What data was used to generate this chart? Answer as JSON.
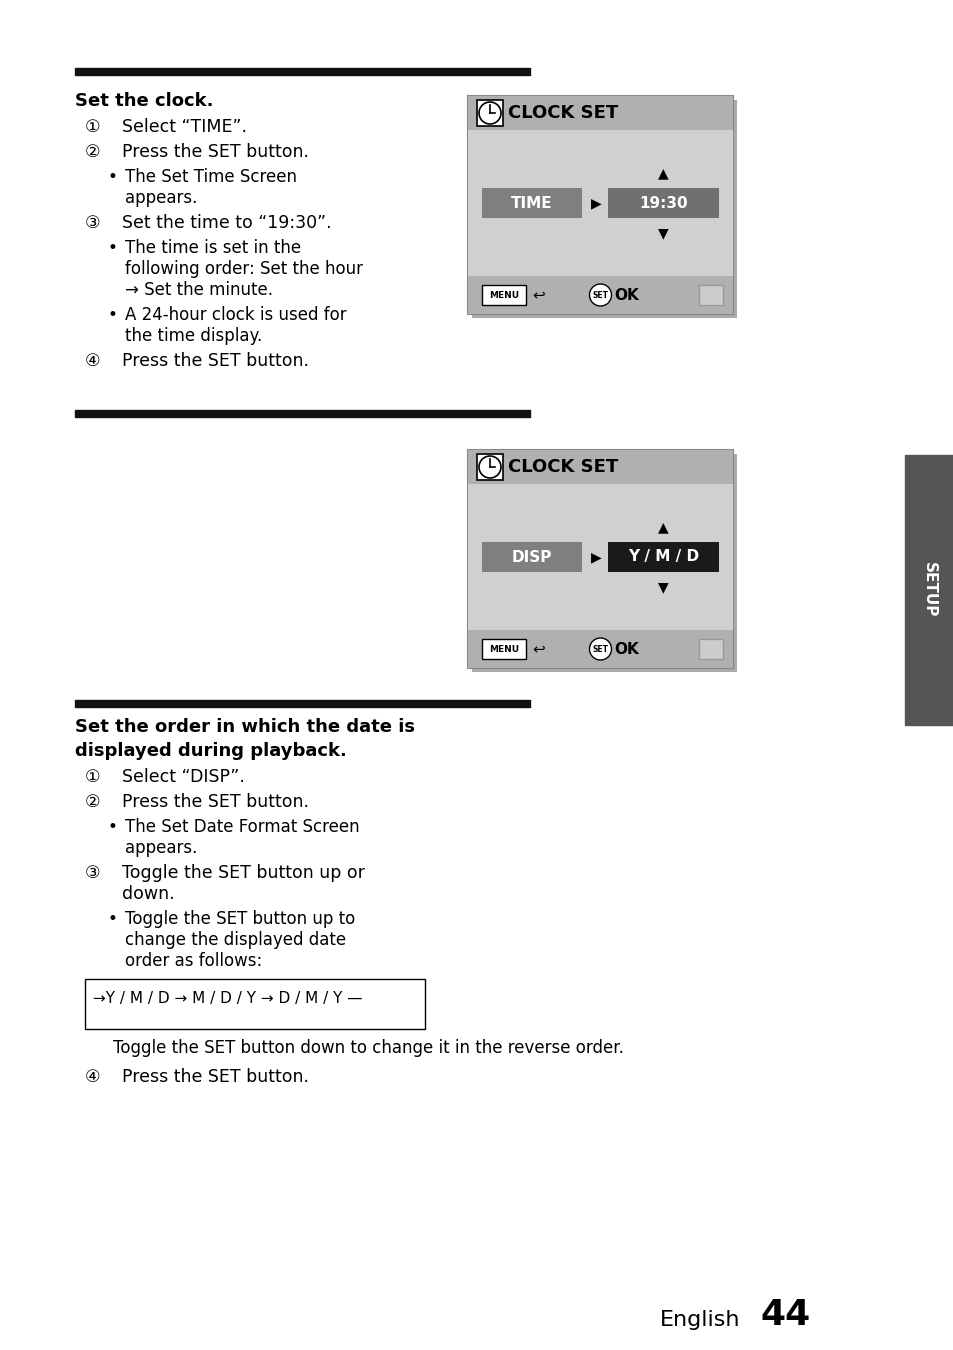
{
  "page_bg": "#ffffff",
  "bar_color": "#111111",
  "sidebar_color": "#555555",
  "sidebar_text": "SETUP",
  "page_number": "44",
  "page_label": "English",
  "section1_title": "Set the clock.",
  "section2_title_line1": "Set the order in which the date is",
  "section2_title_line2": "displayed during playback.",
  "clock_box1": {
    "title": "CLOCK SET",
    "label": "TIME",
    "value": "19:30",
    "bg_header": "#b0b0b0",
    "bg_body": "#d0d0d0",
    "bg_label": "#808080",
    "bg_value": "#707070",
    "bg_footer": "#b0b0b0"
  },
  "clock_box2": {
    "title": "CLOCK SET",
    "label": "DISP",
    "value": "Y / M / D",
    "bg_header": "#b0b0b0",
    "bg_body": "#d0d0d0",
    "bg_label": "#808080",
    "bg_value": "#1a1a1a",
    "bg_footer": "#b0b0b0"
  }
}
